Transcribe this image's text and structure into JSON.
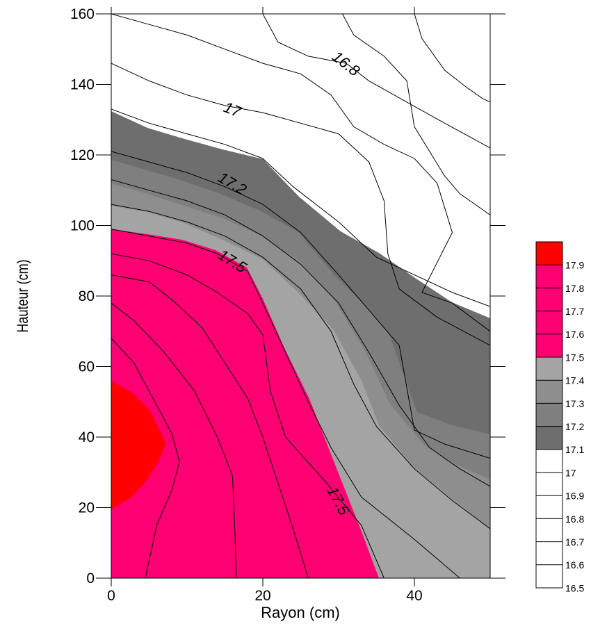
{
  "chart_data": {
    "type": "filled-contour",
    "xlabel": "Rayon (cm)",
    "ylabel": "Hauteur (cm)",
    "xlim": [
      0,
      50
    ],
    "ylim": [
      0,
      160
    ],
    "x_ticks": [
      0,
      20,
      40
    ],
    "y_ticks": [
      0,
      20,
      40,
      60,
      80,
      100,
      120,
      140,
      160
    ],
    "levels": [
      16.5,
      16.6,
      16.7,
      16.8,
      16.9,
      17,
      17.1,
      17.2,
      17.3,
      17.4,
      17.5,
      17.6,
      17.7,
      17.8,
      17.9
    ],
    "level_colors": [
      "#ffffff",
      "#ffffff",
      "#ffffff",
      "#ffffff",
      "#ffffff",
      "#ffffff",
      "#6e6e6e",
      "#7f7f7f",
      "#8e8e8e",
      "#a4a4a4",
      "#ff0073",
      "#ff0073",
      "#ff0073",
      "#ff0073",
      "#ff0000"
    ],
    "contour_labels": [
      {
        "text": "16.8",
        "x": 31,
        "y": 146,
        "angle": 38
      },
      {
        "text": "17",
        "x": 16,
        "y": 133,
        "angle": 22
      },
      {
        "text": "17.2",
        "x": 16,
        "y": 112,
        "angle": 30
      },
      {
        "text": "17.5",
        "x": 16,
        "y": 90,
        "angle": 32
      },
      {
        "text": "17.5",
        "x": 30,
        "y": 22,
        "angle": 62
      }
    ],
    "contours": [
      {
        "level": 16.8,
        "points": [
          [
            20,
            160
          ],
          [
            22,
            152
          ],
          [
            26,
            148
          ],
          [
            31,
            146
          ],
          [
            34,
            141
          ],
          [
            39,
            135
          ],
          [
            44,
            129
          ],
          [
            50,
            122
          ]
        ]
      },
      {
        "level": 16.8,
        "points": [
          [
            30.5,
            160
          ],
          [
            32,
            154
          ],
          [
            36,
            148
          ],
          [
            39,
            141
          ],
          [
            40,
            128
          ],
          [
            42,
            121
          ],
          [
            44,
            114
          ],
          [
            46,
            109
          ],
          [
            50,
            103
          ]
        ]
      },
      {
        "level": 16.9,
        "points": [
          [
            0,
            146
          ],
          [
            5,
            141
          ],
          [
            10,
            137
          ],
          [
            15,
            134
          ],
          [
            20,
            132
          ],
          [
            25,
            129
          ],
          [
            30,
            126
          ],
          [
            34,
            118
          ],
          [
            36,
            107
          ],
          [
            36.5,
            92
          ],
          [
            38,
            82
          ],
          [
            43,
            74
          ],
          [
            50,
            66
          ]
        ]
      },
      {
        "level": 16.9,
        "points": [
          [
            40,
            160
          ],
          [
            41,
            153
          ],
          [
            44,
            144
          ],
          [
            47,
            139
          ],
          [
            49,
            136
          ],
          [
            50,
            135
          ]
        ]
      },
      {
        "level": 17.0,
        "points": [
          [
            0,
            133
          ],
          [
            5,
            129
          ],
          [
            10,
            126
          ],
          [
            15,
            123
          ],
          [
            20,
            119
          ],
          [
            24,
            111
          ],
          [
            30,
            101
          ],
          [
            35,
            91
          ],
          [
            40,
            86
          ],
          [
            45,
            81
          ],
          [
            50,
            77
          ]
        ]
      },
      {
        "level": 17.0,
        "points": [
          [
            0,
            160
          ],
          [
            5,
            157
          ],
          [
            10,
            154
          ],
          [
            15,
            150
          ],
          [
            20,
            146
          ],
          [
            25,
            143
          ],
          [
            29,
            137
          ],
          [
            32,
            128
          ],
          [
            36,
            123
          ],
          [
            40,
            119
          ],
          [
            43,
            112
          ],
          [
            45,
            98
          ],
          [
            41,
            81
          ],
          [
            45,
            78
          ],
          [
            50,
            70
          ]
        ]
      },
      {
        "level": 17.1,
        "points": [
          [
            0,
            121
          ],
          [
            5,
            118
          ],
          [
            10,
            115
          ],
          [
            15,
            111
          ],
          [
            20,
            106
          ],
          [
            25,
            98
          ],
          [
            30,
            86
          ],
          [
            34,
            76
          ],
          [
            38,
            66
          ],
          [
            40,
            42
          ],
          [
            44,
            38
          ],
          [
            50,
            34
          ]
        ]
      },
      {
        "level": 17.2,
        "points": [
          [
            0,
            113
          ],
          [
            5,
            110
          ],
          [
            10,
            107
          ],
          [
            15,
            103
          ],
          [
            20,
            97
          ],
          [
            25,
            89
          ],
          [
            30,
            78
          ],
          [
            34,
            64
          ],
          [
            38,
            49
          ],
          [
            42,
            37
          ],
          [
            46,
            31
          ],
          [
            50,
            26
          ]
        ]
      },
      {
        "level": 17.3,
        "points": [
          [
            0,
            106
          ],
          [
            5,
            104
          ],
          [
            10,
            101
          ],
          [
            15,
            97
          ],
          [
            20,
            91
          ],
          [
            25,
            82
          ],
          [
            29,
            70
          ],
          [
            32,
            55
          ],
          [
            35,
            43
          ],
          [
            40,
            31
          ],
          [
            45,
            22
          ],
          [
            50,
            14
          ]
        ]
      },
      {
        "level": 17.4,
        "points": [
          [
            0,
            99
          ],
          [
            5,
            97
          ],
          [
            10,
            95
          ],
          [
            14,
            92
          ],
          [
            18,
            87
          ],
          [
            20,
            78
          ],
          [
            23,
            64
          ],
          [
            26,
            50
          ],
          [
            29,
            37
          ],
          [
            33,
            23
          ],
          [
            40,
            11
          ],
          [
            46,
            0
          ]
        ]
      },
      {
        "level": 17.5,
        "points": [
          [
            0,
            92
          ],
          [
            5,
            90
          ],
          [
            10,
            86
          ],
          [
            14,
            81
          ],
          [
            18,
            75
          ],
          [
            20,
            69
          ],
          [
            21,
            53
          ],
          [
            23,
            40
          ],
          [
            28,
            28
          ],
          [
            33,
            15
          ],
          [
            36,
            0
          ]
        ]
      },
      {
        "level": 17.6,
        "points": [
          [
            0,
            86
          ],
          [
            5,
            84
          ],
          [
            8,
            79
          ],
          [
            12,
            71
          ],
          [
            15,
            61
          ],
          [
            18,
            51
          ],
          [
            20,
            40
          ],
          [
            22,
            27
          ],
          [
            24,
            14
          ],
          [
            26,
            0
          ]
        ]
      },
      {
        "level": 17.7,
        "points": [
          [
            0,
            78
          ],
          [
            3,
            73
          ],
          [
            7,
            64
          ],
          [
            11,
            53
          ],
          [
            14,
            40
          ],
          [
            16,
            29
          ],
          [
            16.3,
            14
          ],
          [
            16.5,
            0
          ]
        ]
      },
      {
        "level": 17.8,
        "points": [
          [
            0,
            68
          ],
          [
            3,
            61
          ],
          [
            5,
            53
          ],
          [
            8,
            41
          ],
          [
            9,
            33
          ],
          [
            8,
            25
          ],
          [
            6,
            15
          ],
          [
            4.5,
            0
          ]
        ]
      }
    ]
  }
}
